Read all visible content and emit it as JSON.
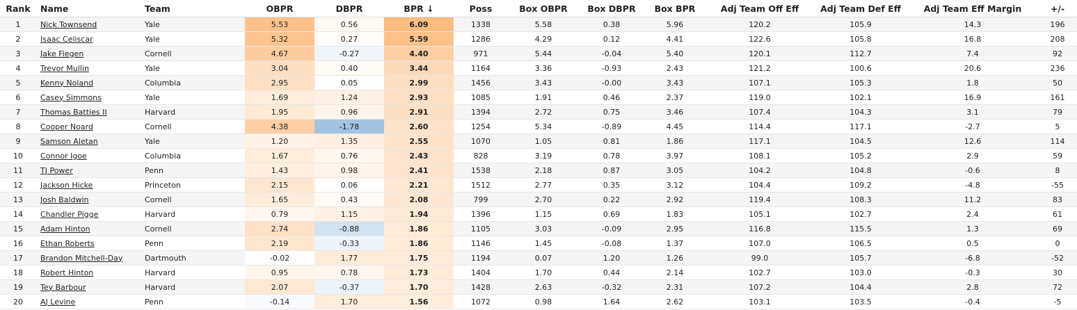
{
  "table": {
    "header": [
      "Rank",
      "Name",
      "Team",
      "OBPR",
      "DBPR",
      "BPR ↓",
      "Poss",
      "Box OBPR",
      "Box DBPR",
      "Box BPR",
      "Adj Team Off Eff",
      "Adj Team Def Eff",
      "Adj Team Eff Margin",
      "+/-"
    ],
    "rows": [
      [
        "1",
        "Nick Townsend",
        "Yale",
        "5.53",
        "0.56",
        "6.09",
        "1338",
        "5.58",
        "0.38",
        "5.96",
        "120.2",
        "105.9",
        "14.3",
        "196"
      ],
      [
        "2",
        "Isaac Celiscar",
        "Yale",
        "5.32",
        "0.27",
        "5.59",
        "1286",
        "4.29",
        "0.12",
        "4.41",
        "122.6",
        "105.8",
        "16.8",
        "208"
      ],
      [
        "3",
        "Jake Fiegen",
        "Cornell",
        "4.67",
        "-0.27",
        "4.40",
        "971",
        "5.44",
        "-0.04",
        "5.40",
        "120.1",
        "112.7",
        "7.4",
        "92"
      ],
      [
        "4",
        "Trevor Mullin",
        "Yale",
        "3.04",
        "0.40",
        "3.44",
        "1164",
        "3.36",
        "-0.93",
        "2.43",
        "121.2",
        "100.6",
        "20.6",
        "236"
      ],
      [
        "5",
        "Kenny Noland",
        "Columbia",
        "2.95",
        "0.05",
        "2.99",
        "1456",
        "3.43",
        "-0.00",
        "3.43",
        "107.1",
        "105.3",
        "1.8",
        "50"
      ],
      [
        "6",
        "Casey Simmons",
        "Yale",
        "1.69",
        "1.24",
        "2.93",
        "1085",
        "1.91",
        "0.46",
        "2.37",
        "119.0",
        "102.1",
        "16.9",
        "161"
      ],
      [
        "7",
        "Thomas Batties II",
        "Harvard",
        "1.95",
        "0.96",
        "2.91",
        "1394",
        "2.72",
        "0.75",
        "3.46",
        "107.4",
        "104.3",
        "3.1",
        "79"
      ],
      [
        "8",
        "Cooper Noard",
        "Cornell",
        "4.38",
        "-1.78",
        "2.60",
        "1254",
        "5.34",
        "-0.89",
        "4.45",
        "114.4",
        "117.1",
        "-2.7",
        "5"
      ],
      [
        "9",
        "Samson Aletan",
        "Yale",
        "1.20",
        "1.35",
        "2.55",
        "1070",
        "1.05",
        "0.81",
        "1.86",
        "117.1",
        "104.5",
        "12.6",
        "114"
      ],
      [
        "10",
        "Connor Igoe",
        "Columbia",
        "1.67",
        "0.76",
        "2.43",
        "828",
        "3.19",
        "0.78",
        "3.97",
        "108.1",
        "105.2",
        "2.9",
        "59"
      ],
      [
        "11",
        "TJ Power",
        "Penn",
        "1.43",
        "0.98",
        "2.41",
        "1538",
        "2.18",
        "0.87",
        "3.05",
        "104.2",
        "104.8",
        "-0.6",
        "8"
      ],
      [
        "12",
        "Jackson Hicke",
        "Princeton",
        "2.15",
        "0.06",
        "2.21",
        "1512",
        "2.77",
        "0.35",
        "3.12",
        "104.4",
        "109.2",
        "-4.8",
        "-55"
      ],
      [
        "13",
        "Josh Baldwin",
        "Cornell",
        "1.65",
        "0.43",
        "2.08",
        "799",
        "2.70",
        "0.22",
        "2.92",
        "119.4",
        "108.3",
        "11.2",
        "83"
      ],
      [
        "14",
        "Chandler Pigge",
        "Harvard",
        "0.79",
        "1.15",
        "1.94",
        "1396",
        "1.15",
        "0.69",
        "1.83",
        "105.1",
        "102.7",
        "2.4",
        "61"
      ],
      [
        "15",
        "Adam Hinton",
        "Cornell",
        "2.74",
        "-0.88",
        "1.86",
        "1105",
        "3.03",
        "-0.09",
        "2.95",
        "116.8",
        "115.5",
        "1.3",
        "69"
      ],
      [
        "16",
        "Ethan Roberts",
        "Penn",
        "2.19",
        "-0.33",
        "1.86",
        "1146",
        "1.45",
        "-0.08",
        "1.37",
        "107.0",
        "106.5",
        "0.5",
        "0"
      ],
      [
        "17",
        "Brandon Mitchell-Day",
        "Dartmouth",
        "-0.02",
        "1.77",
        "1.75",
        "1194",
        "0.07",
        "1.20",
        "1.26",
        "99.0",
        "105.7",
        "-6.8",
        "-52"
      ],
      [
        "18",
        "Robert Hinton",
        "Harvard",
        "0.95",
        "0.78",
        "1.73",
        "1404",
        "1.70",
        "0.44",
        "2.14",
        "102.7",
        "103.0",
        "-0.3",
        "30"
      ],
      [
        "19",
        "Tey Barbour",
        "Harvard",
        "2.07",
        "-0.37",
        "1.70",
        "1428",
        "2.63",
        "-0.32",
        "2.31",
        "107.2",
        "104.4",
        "2.8",
        "72"
      ],
      [
        "20",
        "AJ Levine",
        "Penn",
        "-0.14",
        "1.70",
        "1.56",
        "1072",
        "0.98",
        "1.64",
        "2.62",
        "103.1",
        "103.5",
        "-0.4",
        "-5"
      ]
    ]
  }
}
